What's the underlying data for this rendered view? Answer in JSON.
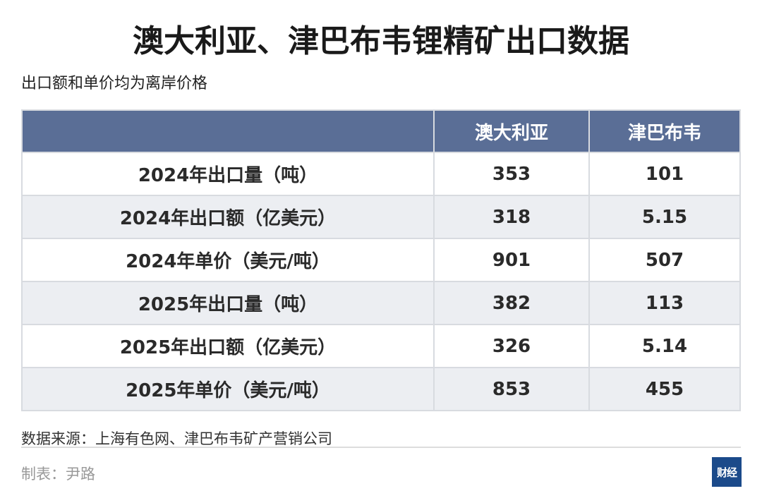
{
  "title": "澳大利亚、津巴布韦锂精矿出口数据",
  "subtitle": "出口额和单价均为离岸价格",
  "table": {
    "headers": [
      "",
      "澳大利亚",
      "津巴布韦"
    ],
    "rows": [
      [
        "2024年出口量（吨）",
        "353",
        "101"
      ],
      [
        "2024年出口额（亿美元）",
        "318",
        "5.15"
      ],
      [
        "2024年单价（美元/吨）",
        "901",
        "507"
      ],
      [
        "2025年出口量（吨）",
        "382",
        "113"
      ],
      [
        "2025年出口额（亿美元）",
        "326",
        "5.14"
      ],
      [
        "2025年单价（美元/吨）",
        "853",
        "455"
      ]
    ]
  },
  "source": "数据来源：上海有色网、津巴布韦矿产营销公司",
  "maker": "制表：尹路",
  "logo": "财经",
  "colors": {
    "header_bg": "#5a6e96",
    "alt_row": "#eceef2",
    "logo_bg": "#1b4a8a"
  }
}
